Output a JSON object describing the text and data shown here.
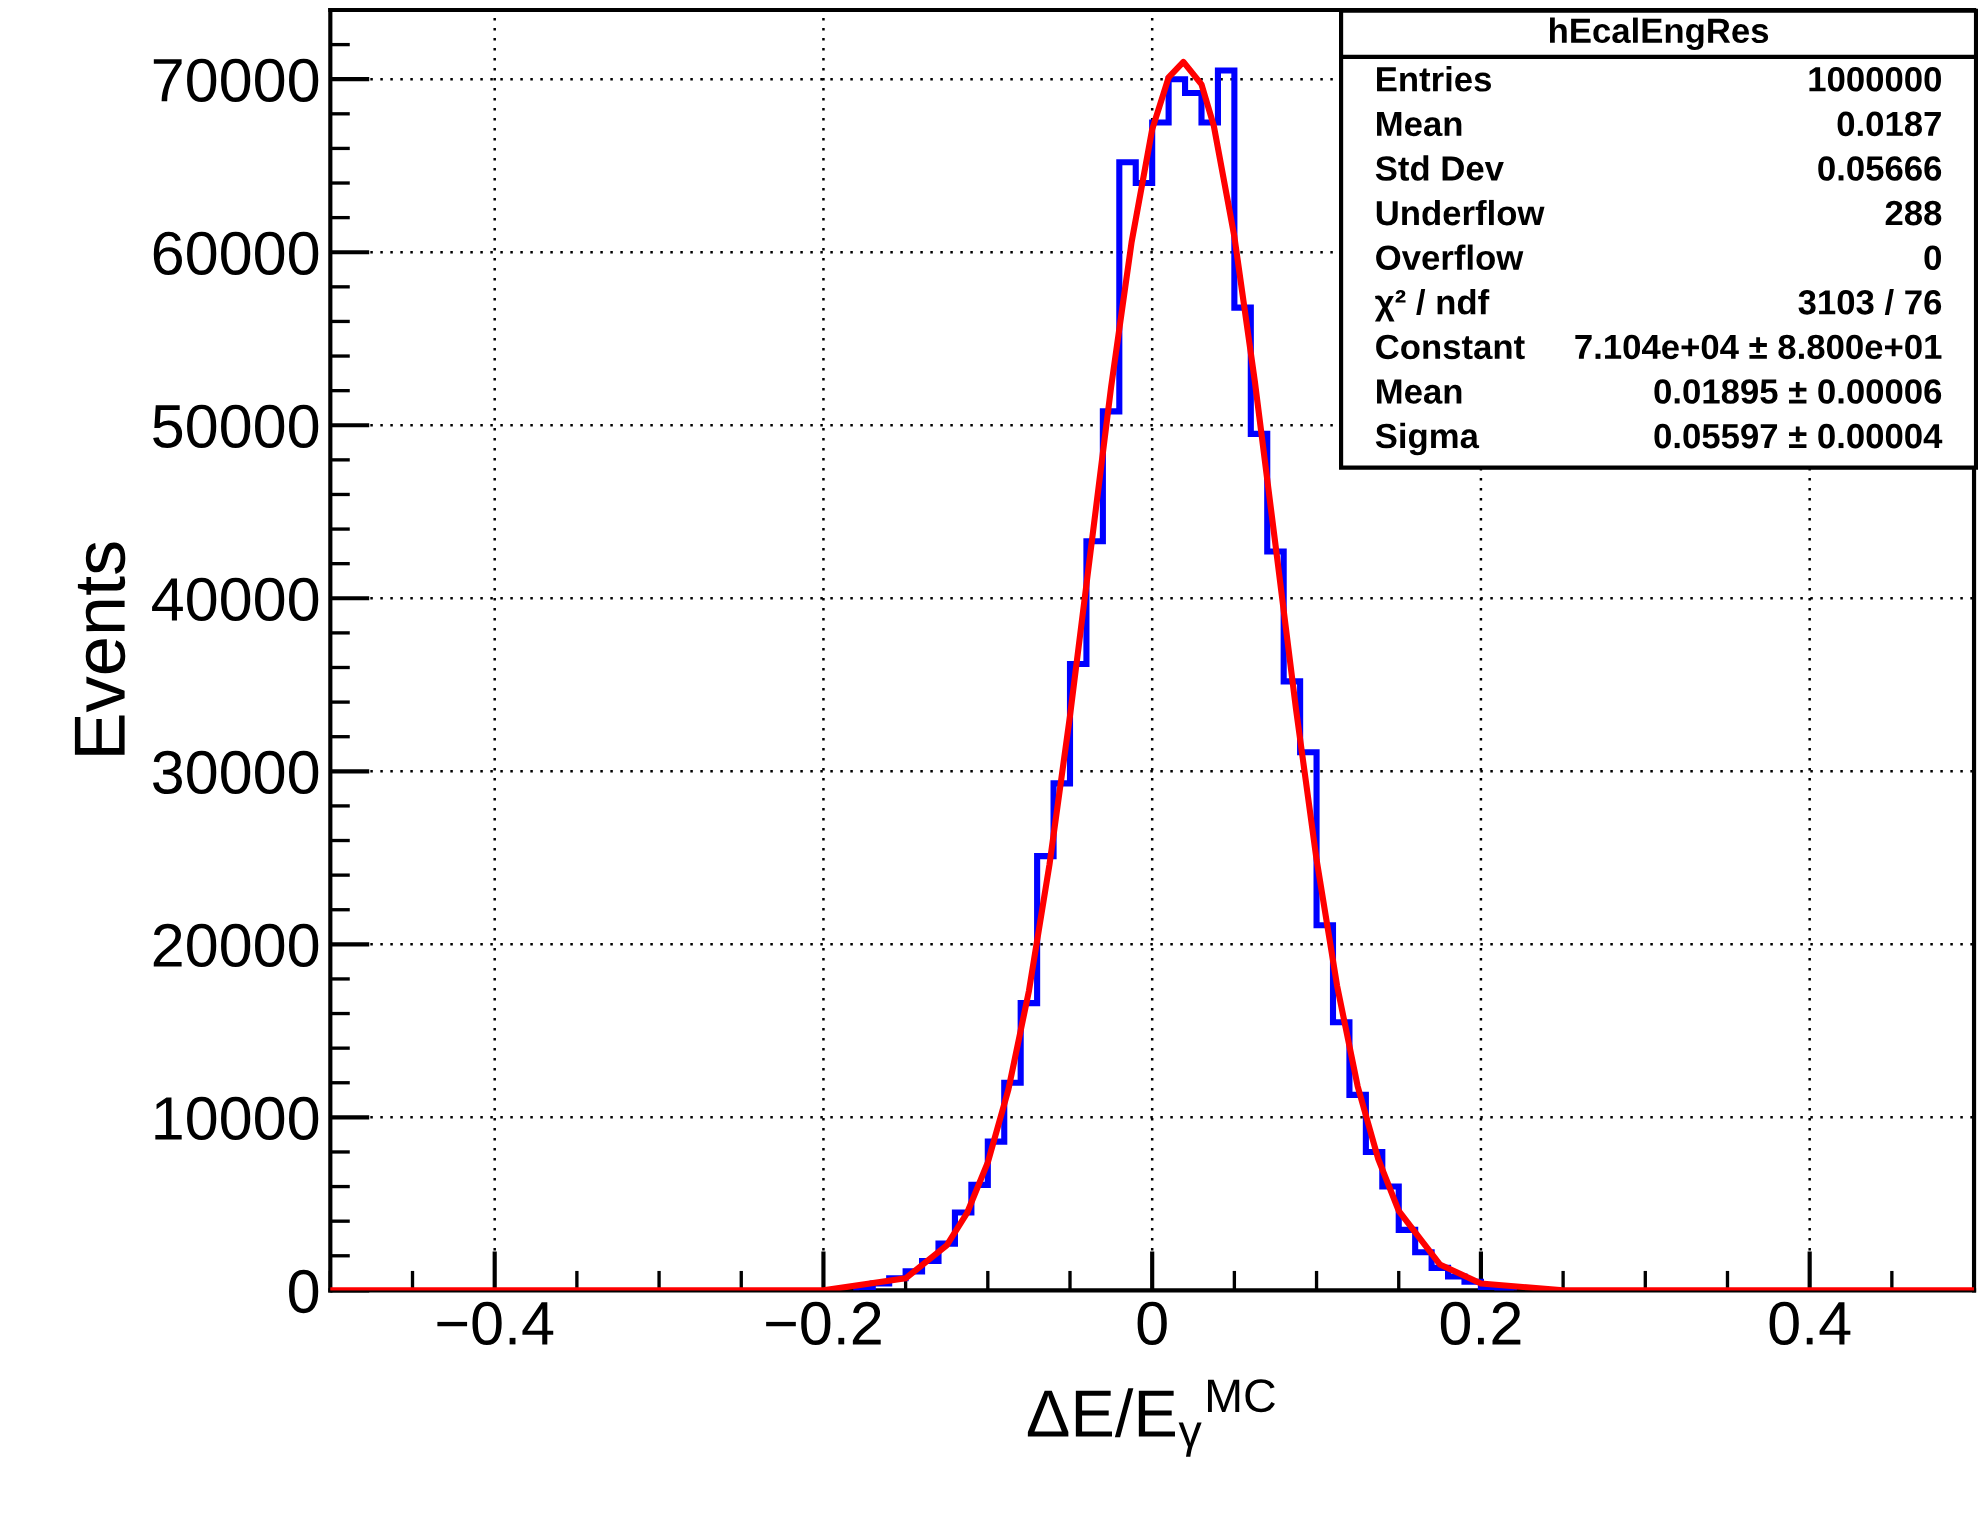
{
  "chart_data": {
    "type": "histogram",
    "xlabel": "ΔE/E$_{γ}$$^{MC}$",
    "ylabel": "Events",
    "bins": [
      -0.18,
      -0.17,
      -0.16,
      -0.15,
      -0.14,
      -0.13,
      -0.12,
      -0.11,
      -0.1,
      -0.09,
      -0.08,
      -0.07,
      -0.06,
      -0.05,
      -0.04,
      -0.03,
      -0.02,
      -0.01,
      0,
      0.01,
      0.02,
      0.03,
      0.04,
      0.05,
      0.06,
      0.07,
      0.08,
      0.09,
      0.1,
      0.11,
      0.12,
      0.13,
      0.14,
      0.15,
      0.16,
      0.17,
      0.18,
      0.19,
      0.2,
      0.21,
      0.22
    ],
    "series": [
      {
        "color": "#0000ff",
        "values": [
          200,
          400,
          700,
          1100,
          1700,
          2700,
          4500,
          6100,
          8600,
          12000,
          16600,
          25100,
          29300,
          36200,
          43300,
          50800,
          65200,
          64000,
          67500,
          70000,
          69200,
          67500,
          70500,
          56800,
          49500,
          42700,
          35200,
          31100,
          21100,
          15500,
          11300,
          8000,
          6000,
          3500,
          2200,
          1300,
          800,
          500,
          200,
          100
        ]
      },
      {
        "type": "line",
        "color": "#ff0000",
        "x": [
          -0.5,
          -0.3,
          -0.2,
          -0.15,
          -0.125,
          -0.1125,
          -0.1,
          -0.0875,
          -0.075,
          -0.0625,
          -0.05,
          -0.0375,
          -0.025,
          -0.0125,
          0,
          0.01,
          0.019,
          0.03,
          0.0375,
          0.05,
          0.0625,
          0.075,
          0.0875,
          0.1,
          0.1125,
          0.125,
          0.1375,
          0.15,
          0.175,
          0.2,
          0.25,
          0.3,
          0.5
        ],
        "values": [
          0,
          0,
          0,
          700,
          2600,
          4500,
          7400,
          11600,
          17300,
          24600,
          33200,
          42700,
          52200,
          60600,
          67100,
          70100,
          71000,
          69700,
          67300,
          60900,
          52500,
          43100,
          33600,
          24900,
          17600,
          11800,
          7600,
          4600,
          1500,
          400,
          0,
          0,
          0
        ]
      }
    ],
    "xlim": [
      -0.5,
      0.5
    ],
    "ylim": [
      0,
      74000
    ],
    "xticks": [
      {
        "value": -0.4,
        "label": "−0.4"
      },
      {
        "value": -0.2,
        "label": "−0.2"
      },
      0,
      0.2,
      0.4
    ],
    "yticks": [
      0,
      10000,
      20000,
      30000,
      40000,
      50000,
      60000,
      70000
    ],
    "grid": true,
    "legend": false,
    "annotations": [
      "hEcalEngRes",
      "Entries",
      "1000000",
      "Mean",
      "0.0187",
      "Std Dev",
      "0.05666",
      "Underflow",
      "288",
      "Overflow",
      "0",
      "χ² / ndf",
      "3103 / 76",
      "Constant",
      "7.104e+04 ± 8.800e+01",
      "Mean",
      "0.01895 ± 0.00006",
      "Sigma",
      "0.05597 ± 0.00004"
    ]
  }
}
